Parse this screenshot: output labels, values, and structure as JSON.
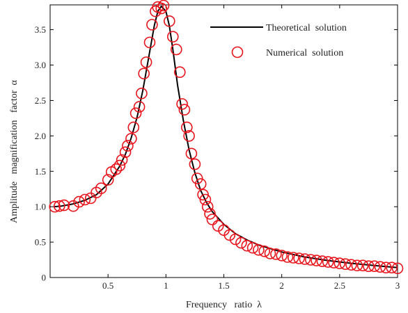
{
  "chart_data": {
    "type": "line",
    "xlabel": "Frequency   ratio  λ",
    "ylabel": "Amplitude   magnification   factor  α",
    "xlim": [
      0,
      3
    ],
    "ylim": [
      0,
      3.85
    ],
    "xticks": [
      0.5,
      1,
      1.5,
      2,
      2.5,
      3
    ],
    "xtick_labels": [
      "0.5",
      "1",
      "1.5",
      "2",
      "2.5",
      "3"
    ],
    "yticks": [
      0,
      0.5,
      1,
      1.5,
      2,
      2.5,
      3,
      3.5
    ],
    "ytick_labels": [
      "0",
      "0.5",
      "1.0",
      "1.5",
      "2.0",
      "2.5",
      "3.0",
      "3.5"
    ],
    "grid": false,
    "legend": {
      "placement": "top-right",
      "entries": [
        {
          "label": "Theoretical  solution",
          "marker": "line",
          "color": "#000000"
        },
        {
          "label": "Numerical  solution",
          "marker": "circle",
          "color": "#e8141b"
        }
      ]
    },
    "series": [
      {
        "name": "Theoretical  solution",
        "style": "line",
        "color": "#000000",
        "x": [
          0.03,
          0.1,
          0.2,
          0.3,
          0.4,
          0.5,
          0.6,
          0.65,
          0.7,
          0.75,
          0.8,
          0.85,
          0.9,
          0.93,
          0.96,
          1.0,
          1.03,
          1.06,
          1.1,
          1.15,
          1.2,
          1.25,
          1.3,
          1.35,
          1.4,
          1.5,
          1.6,
          1.7,
          1.8,
          2.0,
          2.2,
          2.4,
          2.6,
          2.8,
          3.0
        ],
        "y": [
          1.0,
          1.01,
          1.04,
          1.09,
          1.17,
          1.32,
          1.57,
          1.74,
          1.97,
          2.26,
          2.64,
          3.1,
          3.56,
          3.76,
          3.83,
          3.76,
          3.55,
          3.22,
          2.72,
          2.22,
          1.8,
          1.48,
          1.23,
          1.06,
          0.93,
          0.75,
          0.62,
          0.53,
          0.46,
          0.36,
          0.29,
          0.24,
          0.2,
          0.17,
          0.14
        ]
      },
      {
        "name": "Numerical  solution",
        "style": "scatter",
        "color": "#e8141b",
        "x": [
          0.04,
          0.08,
          0.12,
          0.2,
          0.25,
          0.3,
          0.35,
          0.4,
          0.44,
          0.5,
          0.53,
          0.57,
          0.6,
          0.62,
          0.65,
          0.67,
          0.7,
          0.72,
          0.74,
          0.77,
          0.79,
          0.81,
          0.83,
          0.86,
          0.88,
          0.91,
          0.93,
          0.96,
          0.98,
          1.03,
          1.06,
          1.09,
          1.12,
          1.14,
          1.16,
          1.18,
          1.2,
          1.22,
          1.25,
          1.27,
          1.3,
          1.32,
          1.34,
          1.36,
          1.38,
          1.4,
          1.45,
          1.5,
          1.55,
          1.6,
          1.65,
          1.7,
          1.75,
          1.8,
          1.85,
          1.9,
          1.95,
          2.0,
          2.05,
          2.1,
          2.15,
          2.2,
          2.25,
          2.3,
          2.35,
          2.4,
          2.45,
          2.5,
          2.55,
          2.6,
          2.65,
          2.7,
          2.75,
          2.8,
          2.85,
          2.9,
          2.95,
          3.0
        ],
        "y": [
          1.0,
          1.01,
          1.02,
          1.01,
          1.07,
          1.1,
          1.12,
          1.2,
          1.26,
          1.38,
          1.49,
          1.53,
          1.58,
          1.66,
          1.77,
          1.86,
          1.96,
          2.12,
          2.32,
          2.41,
          2.6,
          2.88,
          3.04,
          3.32,
          3.57,
          3.76,
          3.82,
          3.8,
          3.84,
          3.62,
          3.4,
          3.22,
          2.9,
          2.45,
          2.37,
          2.12,
          2.0,
          1.75,
          1.6,
          1.4,
          1.32,
          1.17,
          1.1,
          1.0,
          0.9,
          0.82,
          0.73,
          0.67,
          0.6,
          0.54,
          0.49,
          0.45,
          0.42,
          0.39,
          0.37,
          0.34,
          0.33,
          0.31,
          0.29,
          0.28,
          0.27,
          0.26,
          0.25,
          0.24,
          0.23,
          0.22,
          0.21,
          0.2,
          0.19,
          0.18,
          0.17,
          0.17,
          0.16,
          0.16,
          0.15,
          0.14,
          0.14,
          0.13
        ]
      }
    ]
  }
}
